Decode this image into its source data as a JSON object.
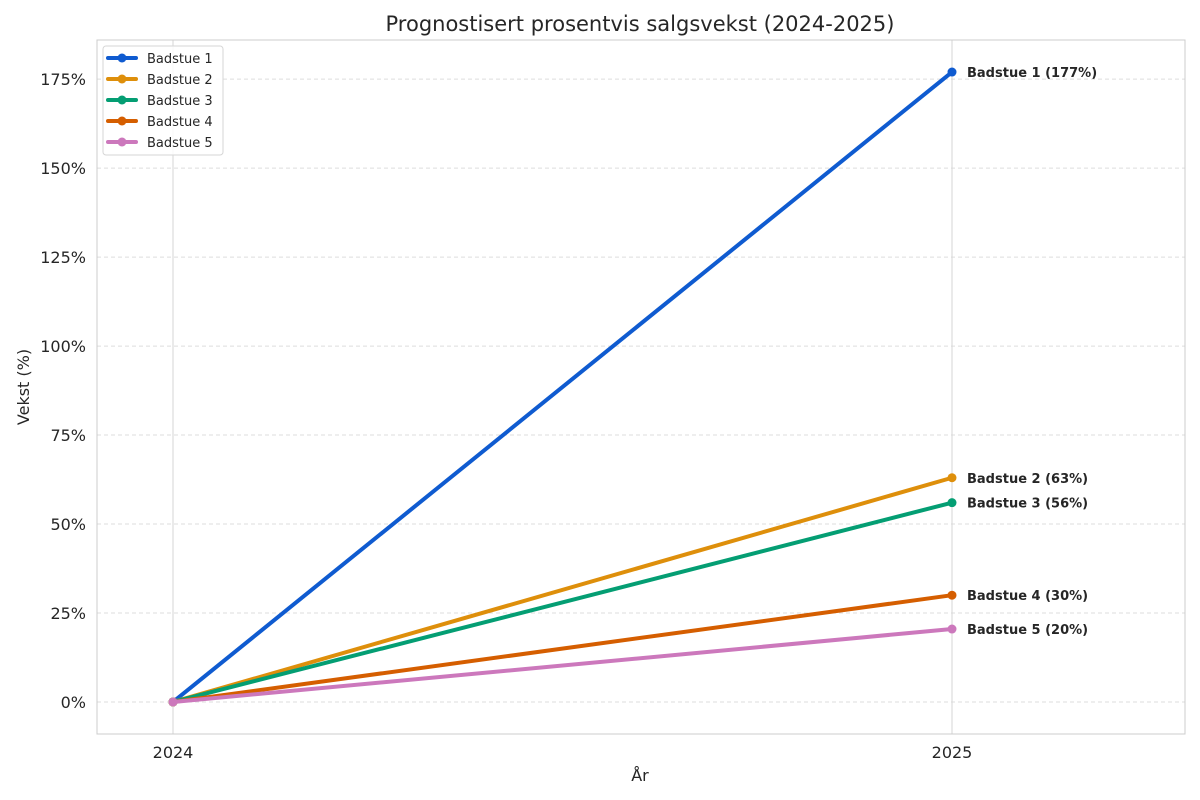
{
  "chart_data": {
    "type": "line",
    "title": "Prognostisert prosentvis salgsvekst (2024-2025)",
    "xlabel": "År",
    "ylabel": "Vekst (%)",
    "x": [
      "2024",
      "2025"
    ],
    "ylim": [
      -9,
      186
    ],
    "yticks": [
      0,
      25,
      50,
      75,
      100,
      125,
      150,
      175
    ],
    "ytick_labels": [
      "0%",
      "25%",
      "50%",
      "75%",
      "100%",
      "125%",
      "150%",
      "175%"
    ],
    "grid": true,
    "legend_position": "top-left",
    "series": [
      {
        "name": "Badstue 1",
        "values": [
          0,
          177
        ],
        "color": "#0f5bd0",
        "end_label": "Badstue 1 (177%)"
      },
      {
        "name": "Badstue 2",
        "values": [
          0,
          63
        ],
        "color": "#de8f0b",
        "end_label": "Badstue 2 (63%)"
      },
      {
        "name": "Badstue 3",
        "values": [
          0,
          56
        ],
        "color": "#049e73",
        "end_label": "Badstue 3 (56%)"
      },
      {
        "name": "Badstue 4",
        "values": [
          0,
          30
        ],
        "color": "#d55e00",
        "end_label": "Badstue 4 (30%)"
      },
      {
        "name": "Badstue 5",
        "values": [
          0,
          20.5
        ],
        "color": "#cc78bc",
        "end_label": "Badstue 5 (20%)"
      }
    ]
  }
}
